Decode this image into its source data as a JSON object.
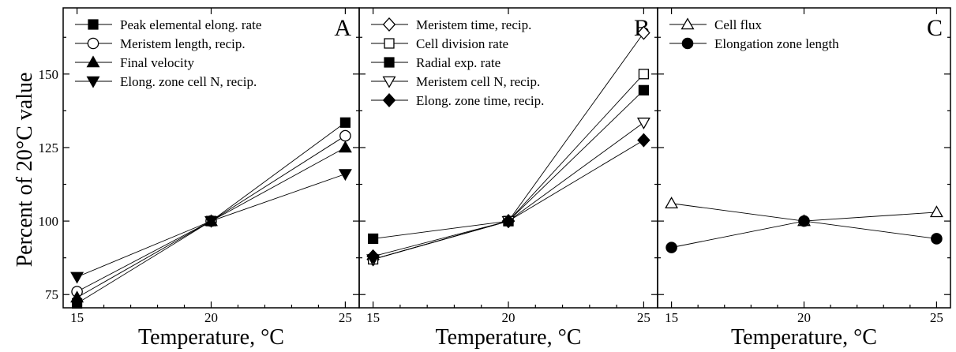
{
  "chart_data": {
    "type": "line",
    "ylabel": "Percent of 20°C value",
    "xlabel": "Temperature, °C",
    "x_ticks": [
      15,
      20,
      25
    ],
    "y_ticks": [
      75,
      100,
      125,
      150
    ],
    "xlim": [
      14.3,
      25.9
    ],
    "ylim": [
      70.5,
      172.5
    ],
    "grid": false,
    "panels": [
      {
        "label": "A",
        "legend_position": "top-left",
        "series": [
          {
            "name": "Peak elemental elong. rate",
            "marker": "square-filled",
            "x": [
              15,
              20,
              25
            ],
            "y": [
              72,
              100,
              133.5
            ]
          },
          {
            "name": "Meristem length, recip.",
            "marker": "circle-open",
            "x": [
              15,
              20,
              25
            ],
            "y": [
              76,
              100,
              129
            ]
          },
          {
            "name": "Final velocity",
            "marker": "triangle-up-filled",
            "x": [
              15,
              20,
              25
            ],
            "y": [
              74,
              100,
              125
            ]
          },
          {
            "name": "Elong. zone cell N, recip.",
            "marker": "triangle-down-filled",
            "x": [
              15,
              20,
              25
            ],
            "y": [
              81,
              100,
              116
            ]
          }
        ]
      },
      {
        "label": "B",
        "legend_position": "top-left",
        "series": [
          {
            "name": "Meristem time, recip.",
            "marker": "diamond-open",
            "x": [
              15,
              20,
              25
            ],
            "y": [
              87,
              100,
              164
            ]
          },
          {
            "name": "Cell division rate",
            "marker": "square-open",
            "x": [
              15,
              20,
              25
            ],
            "y": [
              87,
              100,
              150
            ]
          },
          {
            "name": "Radial exp. rate",
            "marker": "square-filled",
            "x": [
              15,
              20,
              25
            ],
            "y": [
              94,
              100,
              144.5
            ]
          },
          {
            "name": "Meristem cell N, recip.",
            "marker": "triangle-down-open",
            "x": [
              15,
              20,
              25
            ],
            "y": [
              87,
              100,
              133.5
            ]
          },
          {
            "name": "Elong. zone time, recip.",
            "marker": "diamond-filled",
            "x": [
              15,
              20,
              25
            ],
            "y": [
              88,
              100,
              127.5
            ]
          }
        ]
      },
      {
        "label": "C",
        "legend_position": "top-left",
        "series": [
          {
            "name": "Cell flux",
            "marker": "triangle-up-open",
            "x": [
              15,
              20,
              25
            ],
            "y": [
              106,
              100,
              103
            ]
          },
          {
            "name": "Elongation zone length",
            "marker": "circle-filled",
            "x": [
              15,
              20,
              25
            ],
            "y": [
              91,
              100,
              94
            ]
          }
        ]
      }
    ]
  }
}
